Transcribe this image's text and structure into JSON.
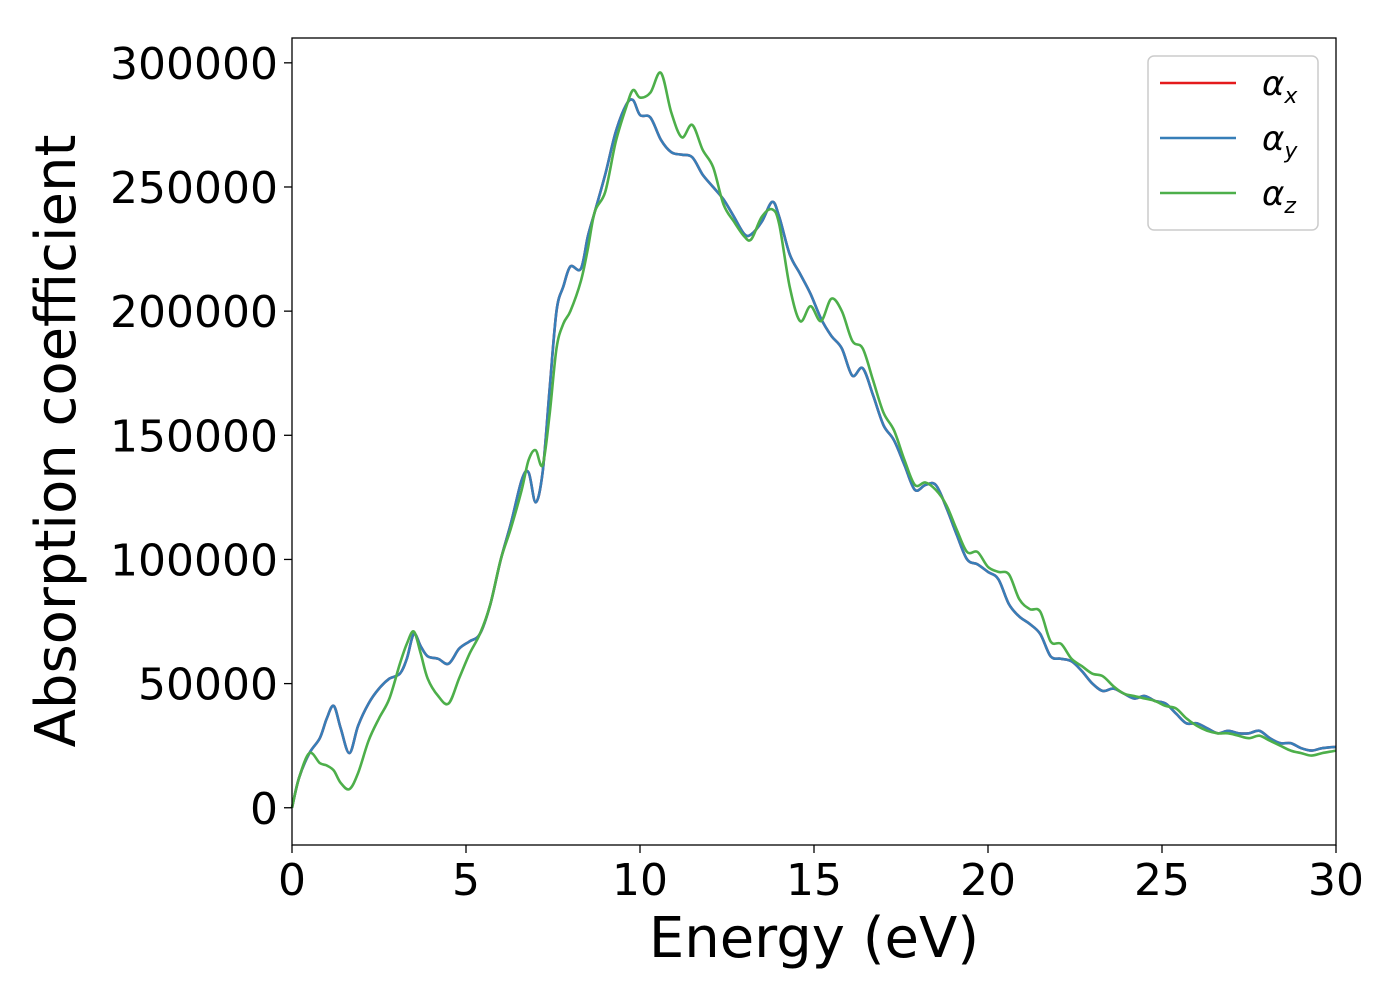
{
  "chart_data": {
    "type": "line",
    "xlabel": "Energy (eV)",
    "ylabel": "Absorption coefficient",
    "xlim": [
      0,
      30
    ],
    "ylim": [
      -15000,
      310000
    ],
    "xticks": [
      0,
      5,
      10,
      15,
      20,
      25,
      30
    ],
    "xtick_labels": [
      "0",
      "5",
      "10",
      "15",
      "20",
      "25",
      "30"
    ],
    "yticks": [
      0,
      50000,
      100000,
      150000,
      200000,
      250000,
      300000
    ],
    "ytick_labels": [
      "0",
      "50000",
      "100000",
      "150000",
      "200000",
      "250000",
      "300000"
    ],
    "grid": false,
    "legend_position": "top-right",
    "series": [
      {
        "name": "α_x",
        "symbol": "α",
        "subscript": "x",
        "color": "#e41a1c",
        "x": [
          0,
          0.2,
          0.5,
          0.8,
          1.0,
          1.2,
          1.4,
          1.65,
          1.9,
          2.2,
          2.5,
          2.8,
          3.1,
          3.3,
          3.5,
          3.7,
          3.9,
          4.2,
          4.5,
          4.8,
          5.1,
          5.4,
          5.7,
          6.0,
          6.3,
          6.6,
          6.8,
          7.0,
          7.2,
          7.4,
          7.6,
          7.8,
          8.0,
          8.3,
          8.5,
          8.7,
          9.0,
          9.3,
          9.6,
          9.8,
          10.0,
          10.3,
          10.6,
          10.9,
          11.2,
          11.5,
          11.8,
          12.1,
          12.4,
          12.7,
          13.0,
          13.2,
          13.5,
          13.8,
          14.0,
          14.3,
          14.6,
          14.9,
          15.2,
          15.5,
          15.8,
          16.1,
          16.4,
          16.7,
          17.0,
          17.3,
          17.6,
          17.9,
          18.2,
          18.5,
          18.8,
          19.1,
          19.4,
          19.7,
          20.0,
          20.3,
          20.6,
          20.9,
          21.2,
          21.5,
          21.8,
          22.1,
          22.4,
          22.7,
          23.0,
          23.3,
          23.6,
          23.9,
          24.2,
          24.5,
          24.8,
          25.1,
          25.4,
          25.7,
          26.0,
          26.3,
          26.6,
          26.9,
          27.2,
          27.5,
          27.8,
          28.1,
          28.4,
          28.7,
          29.0,
          29.3,
          29.6,
          30.0
        ],
        "y": [
          0,
          12000,
          22000,
          28000,
          36000,
          41000,
          32000,
          22000,
          33000,
          42000,
          48000,
          52000,
          54000,
          60000,
          70000,
          65000,
          61000,
          60000,
          58000,
          64000,
          67000,
          70000,
          82000,
          100000,
          115000,
          132000,
          135000,
          123000,
          135000,
          168000,
          200000,
          210000,
          218000,
          217000,
          230000,
          240000,
          255000,
          272000,
          283000,
          285000,
          279000,
          278000,
          269000,
          264000,
          263000,
          262000,
          255000,
          250000,
          245000,
          238000,
          231000,
          231000,
          236000,
          244000,
          238000,
          223000,
          215000,
          207000,
          197000,
          190000,
          185000,
          174000,
          177000,
          166000,
          154000,
          148000,
          138000,
          128000,
          130000,
          130000,
          121000,
          110000,
          100000,
          98000,
          95000,
          92000,
          82000,
          77000,
          74000,
          70000,
          61000,
          60000,
          59000,
          55000,
          50000,
          47000,
          48000,
          46000,
          44000,
          45000,
          43000,
          42000,
          38000,
          34000,
          34000,
          32000,
          30000,
          31000,
          30000,
          30000,
          31000,
          28000,
          26000,
          26000,
          24000,
          23000,
          24000,
          24500
        ]
      },
      {
        "name": "α_y",
        "symbol": "α",
        "subscript": "y",
        "color": "#377eb8",
        "x": [
          0,
          0.2,
          0.5,
          0.8,
          1.0,
          1.2,
          1.4,
          1.65,
          1.9,
          2.2,
          2.5,
          2.8,
          3.1,
          3.3,
          3.5,
          3.7,
          3.9,
          4.2,
          4.5,
          4.8,
          5.1,
          5.4,
          5.7,
          6.0,
          6.3,
          6.6,
          6.8,
          7.0,
          7.2,
          7.4,
          7.6,
          7.8,
          8.0,
          8.3,
          8.5,
          8.7,
          9.0,
          9.3,
          9.6,
          9.8,
          10.0,
          10.3,
          10.6,
          10.9,
          11.2,
          11.5,
          11.8,
          12.1,
          12.4,
          12.7,
          13.0,
          13.2,
          13.5,
          13.8,
          14.0,
          14.3,
          14.6,
          14.9,
          15.2,
          15.5,
          15.8,
          16.1,
          16.4,
          16.7,
          17.0,
          17.3,
          17.6,
          17.9,
          18.2,
          18.5,
          18.8,
          19.1,
          19.4,
          19.7,
          20.0,
          20.3,
          20.6,
          20.9,
          21.2,
          21.5,
          21.8,
          22.1,
          22.4,
          22.7,
          23.0,
          23.3,
          23.6,
          23.9,
          24.2,
          24.5,
          24.8,
          25.1,
          25.4,
          25.7,
          26.0,
          26.3,
          26.6,
          26.9,
          27.2,
          27.5,
          27.8,
          28.1,
          28.4,
          28.7,
          29.0,
          29.3,
          29.6,
          30.0
        ],
        "y": [
          0,
          12000,
          22000,
          28000,
          36000,
          41000,
          32000,
          22000,
          33000,
          42000,
          48000,
          52000,
          54000,
          60000,
          70000,
          65000,
          61000,
          60000,
          58000,
          64000,
          67000,
          70000,
          82000,
          100000,
          115000,
          132000,
          135000,
          123000,
          135000,
          168000,
          200000,
          210000,
          218000,
          217000,
          230000,
          240000,
          255000,
          272000,
          283000,
          285000,
          279000,
          278000,
          269000,
          264000,
          263000,
          262000,
          255000,
          250000,
          245000,
          238000,
          231000,
          231000,
          236000,
          244000,
          238000,
          223000,
          215000,
          207000,
          197000,
          190000,
          185000,
          174000,
          177000,
          166000,
          154000,
          148000,
          138000,
          128000,
          130000,
          130000,
          121000,
          110000,
          100000,
          98000,
          95000,
          92000,
          82000,
          77000,
          74000,
          70000,
          61000,
          60000,
          59000,
          55000,
          50000,
          47000,
          48000,
          46000,
          44000,
          45000,
          43000,
          42000,
          38000,
          34000,
          34000,
          32000,
          30000,
          31000,
          30000,
          30000,
          31000,
          28000,
          26000,
          26000,
          24000,
          23000,
          24000,
          24500
        ]
      },
      {
        "name": "α_z",
        "symbol": "α",
        "subscript": "z",
        "color": "#4daf4a",
        "x": [
          0,
          0.2,
          0.5,
          0.8,
          1.0,
          1.2,
          1.4,
          1.65,
          1.9,
          2.2,
          2.5,
          2.8,
          3.1,
          3.3,
          3.5,
          3.7,
          3.9,
          4.2,
          4.5,
          4.8,
          5.1,
          5.4,
          5.7,
          6.0,
          6.3,
          6.6,
          6.8,
          7.0,
          7.2,
          7.4,
          7.6,
          7.8,
          8.0,
          8.3,
          8.5,
          8.7,
          9.0,
          9.3,
          9.6,
          9.8,
          10.0,
          10.3,
          10.6,
          10.9,
          11.2,
          11.5,
          11.8,
          12.1,
          12.4,
          12.7,
          13.0,
          13.2,
          13.5,
          13.8,
          14.0,
          14.3,
          14.6,
          14.9,
          15.2,
          15.5,
          15.8,
          16.1,
          16.4,
          16.7,
          17.0,
          17.3,
          17.6,
          17.9,
          18.2,
          18.5,
          18.8,
          19.1,
          19.4,
          19.7,
          20.0,
          20.3,
          20.6,
          20.9,
          21.2,
          21.5,
          21.8,
          22.1,
          22.4,
          22.7,
          23.0,
          23.3,
          23.6,
          23.9,
          24.2,
          24.5,
          24.8,
          25.1,
          25.4,
          25.7,
          26.0,
          26.3,
          26.6,
          26.9,
          27.2,
          27.5,
          27.8,
          28.1,
          28.4,
          28.7,
          29.0,
          29.3,
          29.6,
          30.0
        ],
        "y": [
          0,
          12000,
          22000,
          18000,
          17000,
          15000,
          10000,
          7500,
          14000,
          27000,
          36000,
          44000,
          58000,
          66000,
          71000,
          62000,
          52000,
          45000,
          42000,
          52000,
          62000,
          70000,
          82000,
          100000,
          113000,
          128000,
          140000,
          144000,
          138000,
          158000,
          185000,
          195000,
          200000,
          212000,
          225000,
          240000,
          248000,
          268000,
          282000,
          289000,
          286000,
          288000,
          296000,
          280000,
          270000,
          275000,
          265000,
          258000,
          243000,
          236000,
          230000,
          229000,
          238000,
          241000,
          235000,
          210000,
          196000,
          202000,
          196000,
          205000,
          200000,
          188000,
          185000,
          172000,
          159000,
          152000,
          140000,
          130000,
          131000,
          128000,
          122000,
          112000,
          103000,
          103000,
          97000,
          95000,
          94000,
          84000,
          80000,
          79000,
          67000,
          66000,
          60000,
          57000,
          54000,
          53000,
          49000,
          46000,
          45000,
          44000,
          43000,
          41000,
          40000,
          36000,
          33000,
          31000,
          30000,
          30000,
          29000,
          28000,
          29000,
          27000,
          25000,
          23000,
          22000,
          21000,
          22000,
          23000
        ]
      }
    ]
  }
}
